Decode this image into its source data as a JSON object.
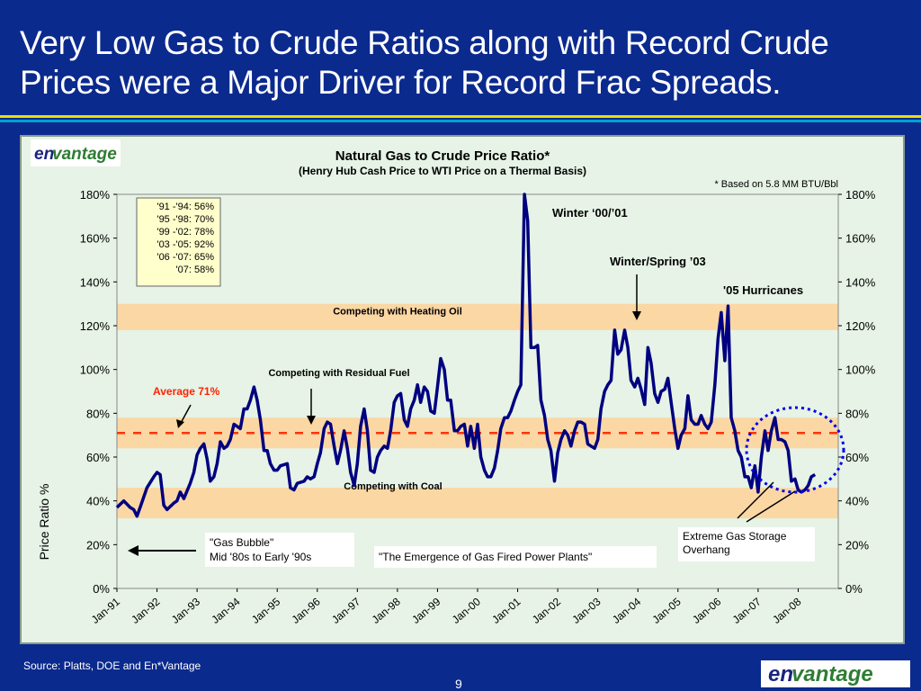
{
  "slide": {
    "title_line1": "Very Low Gas to Crude Ratios along with Record Crude",
    "title_line2": "Prices were a Major Driver for Record Frac Spreads.",
    "source": "Source: Platts, DOE and En*Vantage",
    "page_number": "9",
    "logo_text_en": "en",
    "logo_text_vantage": "vantage",
    "colors": {
      "background": "#0b2a8e",
      "accent": "#e8e000",
      "stripe": "#00a0d0",
      "line": "#000080",
      "average": "#ff3300",
      "band": "#fbd7a4"
    }
  },
  "chart_data": {
    "type": "line",
    "title": "Natural Gas to Crude Price Ratio*",
    "subtitle": "(Henry Hub Cash Price to WTI Price on a Thermal Basis)",
    "footnote": "* Based on 5.8 MM BTU/Bbl",
    "ylabel": "Price Ratio %",
    "ylim": [
      0,
      180
    ],
    "yticks": [
      "0%",
      "20%",
      "40%",
      "60%",
      "80%",
      "100%",
      "120%",
      "140%",
      "160%",
      "180%"
    ],
    "xticks": [
      "Jan-91",
      "Jan-92",
      "Jan-93",
      "Jan-94",
      "Jan-95",
      "Jan-96",
      "Jan-97",
      "Jan-98",
      "Jan-99",
      "Jan-00",
      "Jan-01",
      "Jan-02",
      "Jan-03",
      "Jan-04",
      "Jan-05",
      "Jan-06",
      "Jan-07",
      "Jan-08"
    ],
    "x_start": 1991.0,
    "series": [
      {
        "points": [
          [
            1991.0,
            37
          ],
          [
            1991.17,
            40
          ],
          [
            1991.33,
            37
          ],
          [
            1991.42,
            36
          ],
          [
            1991.5,
            33
          ],
          [
            1991.58,
            37
          ],
          [
            1991.75,
            46
          ],
          [
            1991.92,
            51
          ],
          [
            1992.0,
            53
          ],
          [
            1992.08,
            52
          ],
          [
            1992.17,
            38
          ],
          [
            1992.25,
            36
          ],
          [
            1992.42,
            39
          ],
          [
            1992.5,
            40
          ],
          [
            1992.58,
            44
          ],
          [
            1992.67,
            41
          ],
          [
            1992.83,
            48
          ],
          [
            1992.92,
            53
          ],
          [
            1993.0,
            61
          ],
          [
            1993.08,
            64
          ],
          [
            1993.17,
            66
          ],
          [
            1993.25,
            59
          ],
          [
            1993.33,
            49
          ],
          [
            1993.42,
            51
          ],
          [
            1993.5,
            57
          ],
          [
            1993.58,
            67
          ],
          [
            1993.67,
            64
          ],
          [
            1993.75,
            65
          ],
          [
            1993.83,
            68
          ],
          [
            1993.92,
            75
          ],
          [
            1994.0,
            74
          ],
          [
            1994.08,
            73
          ],
          [
            1994.17,
            82
          ],
          [
            1994.25,
            82
          ],
          [
            1994.33,
            86
          ],
          [
            1994.42,
            92
          ],
          [
            1994.5,
            86
          ],
          [
            1994.58,
            77
          ],
          [
            1994.67,
            63
          ],
          [
            1994.75,
            63
          ],
          [
            1994.83,
            57
          ],
          [
            1994.92,
            54
          ],
          [
            1995.0,
            54
          ],
          [
            1995.08,
            56
          ],
          [
            1995.25,
            57
          ],
          [
            1995.33,
            46
          ],
          [
            1995.42,
            45
          ],
          [
            1995.5,
            48
          ],
          [
            1995.67,
            49
          ],
          [
            1995.75,
            51
          ],
          [
            1995.83,
            50
          ],
          [
            1995.92,
            51
          ],
          [
            1996.0,
            57
          ],
          [
            1996.08,
            62
          ],
          [
            1996.17,
            73
          ],
          [
            1996.25,
            76
          ],
          [
            1996.33,
            75
          ],
          [
            1996.42,
            65
          ],
          [
            1996.5,
            57
          ],
          [
            1996.58,
            63
          ],
          [
            1996.67,
            72
          ],
          [
            1996.75,
            64
          ],
          [
            1996.83,
            53
          ],
          [
            1996.92,
            47
          ],
          [
            1997.0,
            57
          ],
          [
            1997.08,
            74
          ],
          [
            1997.17,
            82
          ],
          [
            1997.25,
            72
          ],
          [
            1997.33,
            54
          ],
          [
            1997.42,
            53
          ],
          [
            1997.5,
            60
          ],
          [
            1997.58,
            63
          ],
          [
            1997.67,
            65
          ],
          [
            1997.75,
            64
          ],
          [
            1997.83,
            72
          ],
          [
            1997.92,
            85
          ],
          [
            1998.0,
            88
          ],
          [
            1998.08,
            89
          ],
          [
            1998.17,
            77
          ],
          [
            1998.25,
            74
          ],
          [
            1998.33,
            82
          ],
          [
            1998.42,
            86
          ],
          [
            1998.5,
            93
          ],
          [
            1998.58,
            85
          ],
          [
            1998.67,
            92
          ],
          [
            1998.75,
            90
          ],
          [
            1998.83,
            81
          ],
          [
            1998.92,
            80
          ],
          [
            1999.0,
            92
          ],
          [
            1999.08,
            105
          ],
          [
            1999.17,
            100
          ],
          [
            1999.25,
            86
          ],
          [
            1999.33,
            86
          ],
          [
            1999.42,
            72
          ],
          [
            1999.5,
            72
          ],
          [
            1999.58,
            74
          ],
          [
            1999.67,
            75
          ],
          [
            1999.75,
            65
          ],
          [
            1999.83,
            74
          ],
          [
            1999.92,
            64
          ],
          [
            2000.0,
            75
          ],
          [
            2000.08,
            60
          ],
          [
            2000.17,
            54
          ],
          [
            2000.25,
            51
          ],
          [
            2000.33,
            51
          ],
          [
            2000.42,
            55
          ],
          [
            2000.5,
            63
          ],
          [
            2000.58,
            73
          ],
          [
            2000.67,
            78
          ],
          [
            2000.75,
            78
          ],
          [
            2000.83,
            81
          ],
          [
            2000.92,
            86
          ],
          [
            2001.0,
            90
          ],
          [
            2001.08,
            93
          ],
          [
            2001.17,
            180
          ],
          [
            2001.25,
            168
          ],
          [
            2001.33,
            110
          ],
          [
            2001.42,
            110
          ],
          [
            2001.5,
            111
          ],
          [
            2001.58,
            86
          ],
          [
            2001.67,
            79
          ],
          [
            2001.75,
            68
          ],
          [
            2001.83,
            63
          ],
          [
            2001.92,
            49
          ],
          [
            2002.0,
            62
          ],
          [
            2002.08,
            68
          ],
          [
            2002.17,
            72
          ],
          [
            2002.25,
            70
          ],
          [
            2002.33,
            65
          ],
          [
            2002.42,
            72
          ],
          [
            2002.5,
            76
          ],
          [
            2002.58,
            76
          ],
          [
            2002.67,
            75
          ],
          [
            2002.75,
            66
          ],
          [
            2002.83,
            65
          ],
          [
            2002.92,
            64
          ],
          [
            2003.0,
            68
          ],
          [
            2003.08,
            82
          ],
          [
            2003.17,
            90
          ],
          [
            2003.25,
            93
          ],
          [
            2003.33,
            95
          ],
          [
            2003.42,
            118
          ],
          [
            2003.5,
            107
          ],
          [
            2003.58,
            109
          ],
          [
            2003.67,
            118
          ],
          [
            2003.75,
            110
          ],
          [
            2003.83,
            95
          ],
          [
            2003.92,
            92
          ],
          [
            2004.0,
            96
          ],
          [
            2004.08,
            91
          ],
          [
            2004.17,
            84
          ],
          [
            2004.25,
            110
          ],
          [
            2004.33,
            103
          ],
          [
            2004.42,
            89
          ],
          [
            2004.5,
            85
          ],
          [
            2004.58,
            90
          ],
          [
            2004.67,
            91
          ],
          [
            2004.75,
            96
          ],
          [
            2004.83,
            85
          ],
          [
            2004.92,
            73
          ],
          [
            2005.0,
            64
          ],
          [
            2005.08,
            70
          ],
          [
            2005.17,
            73
          ],
          [
            2005.25,
            88
          ],
          [
            2005.33,
            77
          ],
          [
            2005.42,
            75
          ],
          [
            2005.5,
            75
          ],
          [
            2005.58,
            79
          ],
          [
            2005.67,
            75
          ],
          [
            2005.75,
            73
          ],
          [
            2005.83,
            76
          ],
          [
            2005.92,
            93
          ],
          [
            2006.0,
            114
          ],
          [
            2006.08,
            126
          ],
          [
            2006.17,
            104
          ],
          [
            2006.25,
            129
          ],
          [
            2006.33,
            78
          ],
          [
            2006.42,
            72
          ],
          [
            2006.5,
            63
          ],
          [
            2006.58,
            60
          ],
          [
            2006.67,
            51
          ],
          [
            2006.75,
            51
          ],
          [
            2006.83,
            46
          ],
          [
            2006.92,
            56
          ],
          [
            2007.0,
            44
          ],
          [
            2007.08,
            60
          ],
          [
            2007.17,
            72
          ],
          [
            2007.25,
            63
          ],
          [
            2007.33,
            72
          ],
          [
            2007.42,
            78
          ],
          [
            2007.5,
            68
          ],
          [
            2007.58,
            68
          ],
          [
            2007.67,
            67
          ],
          [
            2007.75,
            63
          ],
          [
            2007.83,
            49
          ],
          [
            2007.92,
            50
          ],
          [
            2008.0,
            45
          ],
          [
            2008.08,
            44
          ],
          [
            2008.17,
            45
          ],
          [
            2008.25,
            47
          ],
          [
            2008.33,
            51
          ],
          [
            2008.42,
            52
          ]
        ]
      }
    ],
    "average_value": 71,
    "average_label": "Average 71%",
    "bands": [
      {
        "label": "Competing with Heating Oil",
        "from": 118,
        "to": 130
      },
      {
        "label": "Competing with Residual Fuel",
        "from": 64,
        "to": 78
      },
      {
        "label": "Competing with Coal",
        "from": 32,
        "to": 46
      }
    ],
    "period_averages": [
      "'91 -'94:  56%",
      "'95 -'98:  70%",
      "'99 -'02:  78%",
      "'03 -'05:  92%",
      "'06 -'07:  65%",
      "'07:  58%"
    ],
    "annotations": {
      "winter_00_01": "Winter ‘00/’01",
      "winter_spring_03": "Winter/Spring ’03",
      "hurricanes_05": "'05 Hurricanes",
      "gas_bubble_line1": "\"Gas Bubble\"",
      "gas_bubble_line2": "Mid '80s to Early '90s",
      "emergence": "\"The Emergence of Gas Fired Power Plants\"",
      "storage_line1": "Extreme Gas Storage",
      "storage_line2": "Overhang"
    },
    "legend": "none",
    "grid": false
  }
}
